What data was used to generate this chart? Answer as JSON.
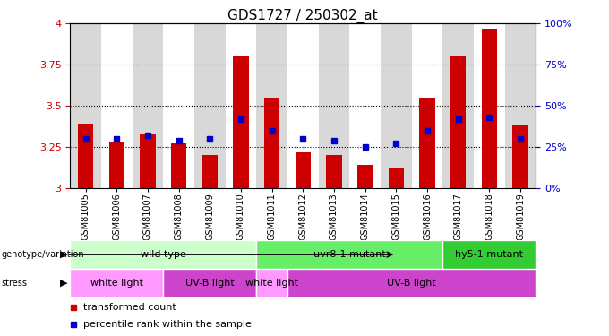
{
  "title": "GDS1727 / 250302_at",
  "samples": [
    "GSM81005",
    "GSM81006",
    "GSM81007",
    "GSM81008",
    "GSM81009",
    "GSM81010",
    "GSM81011",
    "GSM81012",
    "GSM81013",
    "GSM81014",
    "GSM81015",
    "GSM81016",
    "GSM81017",
    "GSM81018",
    "GSM81019"
  ],
  "bar_values": [
    3.39,
    3.28,
    3.33,
    3.27,
    3.2,
    3.8,
    3.55,
    3.22,
    3.2,
    3.14,
    3.12,
    3.55,
    3.8,
    3.97,
    3.38
  ],
  "dot_values": [
    3.3,
    3.3,
    3.32,
    3.29,
    3.3,
    3.42,
    3.35,
    3.3,
    3.29,
    3.25,
    3.27,
    3.35,
    3.42,
    3.43,
    3.3
  ],
  "ylim": [
    3.0,
    4.0
  ],
  "yticks": [
    3.0,
    3.25,
    3.5,
    3.75,
    4.0
  ],
  "ytick_labels": [
    "3",
    "3.25",
    "3.5",
    "3.75",
    "4"
  ],
  "right_ytick_percents": [
    0,
    25,
    50,
    75,
    100
  ],
  "right_yticklabels": [
    "0%",
    "25%",
    "50%",
    "75%",
    "100%"
  ],
  "bar_color": "#cc0000",
  "dot_color": "#0000cc",
  "title_fontsize": 11,
  "tick_color_left": "#cc0000",
  "tick_color_right": "#0000cc",
  "col_bg_even": "#d8d8d8",
  "col_bg_odd": "#ffffff",
  "genotype_groups": [
    {
      "label": "wild type",
      "start": 0,
      "end": 6,
      "color": "#ccffcc"
    },
    {
      "label": "uvr8-1 mutant",
      "start": 6,
      "end": 12,
      "color": "#66ee66"
    },
    {
      "label": "hy5-1 mutant",
      "start": 12,
      "end": 15,
      "color": "#33cc33"
    }
  ],
  "stress_groups": [
    {
      "label": "white light",
      "start": 0,
      "end": 3,
      "color": "#ff99ff"
    },
    {
      "label": "UV-B light",
      "start": 3,
      "end": 6,
      "color": "#cc44cc"
    },
    {
      "label": "white light",
      "start": 6,
      "end": 7,
      "color": "#ff99ff"
    },
    {
      "label": "UV-B light",
      "start": 7,
      "end": 15,
      "color": "#cc44cc"
    }
  ],
  "legend_items": [
    {
      "label": "transformed count",
      "color": "#cc0000"
    },
    {
      "label": "percentile rank within the sample",
      "color": "#0000cc"
    }
  ]
}
